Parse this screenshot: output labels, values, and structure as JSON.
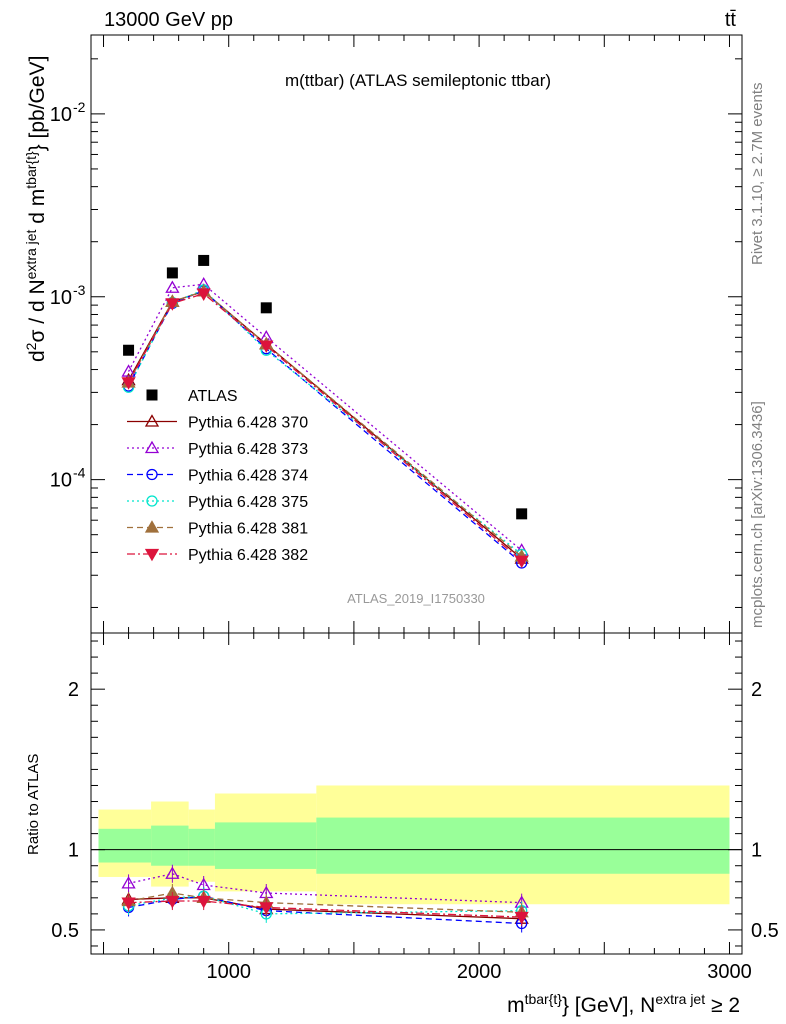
{
  "header": {
    "left": "13000 GeV pp",
    "right": "tt̄"
  },
  "main_title": "m(ttbar) (ATLAS semileptonic ttbar)",
  "side_text": {
    "rivet": "Rivet 3.1.10, ≥ 2.7M events",
    "mcplots": "mcplots.cern.ch [arXiv:1306.3436]"
  },
  "analysis_id": "ATLAS_2019_I1750330",
  "colors": {
    "ATLAS": "#000000",
    "p370": "#8b0000",
    "p373": "#9400d3",
    "p374": "#0000ff",
    "p375": "#00e5cc",
    "p381": "#a0703c",
    "p382": "#dc143c",
    "band_inner": "#99ff99",
    "band_outer": "#ffff99"
  },
  "chart_data": [
    {
      "type": "scatter",
      "name": "upper",
      "title": "m(ttbar) (ATLAS semileptonic ttbar)",
      "ylabel": "d²σ / d N^{extra jet} d m^{tbar{t}} [pb/GeV]",
      "xlabel": "m^{tbar{t}} [GeV], N^{extra jet} ≥ 2",
      "yscale": "log",
      "xlim": [
        450,
        3050
      ],
      "ylim": [
        1.45e-05,
        0.027
      ],
      "y_ticks": [
        {
          "value": 0.0001,
          "label": "10",
          "exp": "-4"
        },
        {
          "value": 0.001,
          "label": "10",
          "exp": "-3"
        },
        {
          "value": 0.01,
          "label": "10",
          "exp": "-2"
        }
      ],
      "x": [
        600,
        775,
        900,
        1150,
        2170
      ],
      "series": [
        {
          "name": "ATLAS",
          "key": "ATLAS",
          "values": [
            0.00051,
            0.00135,
            0.00158,
            0.00087,
            6.5e-05
          ]
        },
        {
          "name": "Pythia 6.428 370",
          "key": "p370",
          "values": [
            0.00035,
            0.00094,
            0.00107,
            0.00055,
            3.7e-05
          ]
        },
        {
          "name": "Pythia 6.428 373",
          "key": "p373",
          "values": [
            0.00039,
            0.00112,
            0.00117,
            0.0006,
            4.1e-05
          ]
        },
        {
          "name": "Pythia 6.428 374",
          "key": "p374",
          "values": [
            0.000325,
            0.00092,
            0.00108,
            0.00052,
            3.5e-05
          ]
        },
        {
          "name": "Pythia 6.428 375",
          "key": "p375",
          "values": [
            0.00032,
            0.00093,
            0.00109,
            0.00051,
            3.9e-05
          ]
        },
        {
          "name": "Pythia 6.428 381",
          "key": "p381",
          "values": [
            0.00034,
            0.00094,
            0.00107,
            0.00055,
            3.8e-05
          ]
        },
        {
          "name": "Pythia 6.428 382",
          "key": "p382",
          "values": [
            0.00034,
            0.00092,
            0.00104,
            0.00054,
            3.6e-05
          ]
        }
      ]
    },
    {
      "type": "scatter",
      "name": "ratio",
      "ylabel": "Ratio to ATLAS",
      "xlim": [
        450,
        3050
      ],
      "ylim": [
        0.35,
        2.35
      ],
      "y_ticks": [
        0.5,
        1,
        2
      ],
      "x_ticks": [
        1000,
        2000,
        3000
      ],
      "x": [
        600,
        775,
        900,
        1150,
        2170
      ],
      "bands": [
        {
          "x0": 480,
          "x1": 690,
          "inner": [
            0.92,
            1.13
          ],
          "outer": [
            0.83,
            1.25
          ]
        },
        {
          "x0": 690,
          "x1": 840,
          "inner": [
            0.9,
            1.15
          ],
          "outer": [
            0.77,
            1.3
          ]
        },
        {
          "x0": 840,
          "x1": 945,
          "inner": [
            0.9,
            1.13
          ],
          "outer": [
            0.8,
            1.25
          ]
        },
        {
          "x0": 945,
          "x1": 1350,
          "inner": [
            0.88,
            1.17
          ],
          "outer": [
            0.74,
            1.35
          ]
        },
        {
          "x0": 1350,
          "x1": 3000,
          "inner": [
            0.85,
            1.2
          ],
          "outer": [
            0.66,
            1.4
          ]
        }
      ],
      "series": [
        {
          "name": "Pythia 6.428 370",
          "key": "p370",
          "values": [
            0.69,
            0.7,
            0.7,
            0.63,
            0.57
          ]
        },
        {
          "name": "Pythia 6.428 373",
          "key": "p373",
          "values": [
            0.79,
            0.85,
            0.78,
            0.73,
            0.67
          ]
        },
        {
          "name": "Pythia 6.428 374",
          "key": "p374",
          "values": [
            0.64,
            0.69,
            0.71,
            0.62,
            0.54
          ]
        },
        {
          "name": "Pythia 6.428 375",
          "key": "p375",
          "values": [
            0.65,
            0.7,
            0.71,
            0.6,
            0.62
          ]
        },
        {
          "name": "Pythia 6.428 381",
          "key": "p381",
          "values": [
            0.68,
            0.73,
            0.7,
            0.67,
            0.61
          ]
        },
        {
          "name": "Pythia 6.428 382",
          "key": "p382",
          "values": [
            0.67,
            0.68,
            0.68,
            0.64,
            0.58
          ]
        }
      ]
    }
  ],
  "legend": [
    {
      "label": "ATLAS",
      "key": "ATLAS",
      "marker": "square",
      "dash": ""
    },
    {
      "label": "Pythia 6.428 370",
      "key": "p370",
      "marker": "triangle-up-open",
      "dash": ""
    },
    {
      "label": "Pythia 6.428 373",
      "key": "p373",
      "marker": "triangle-up-open",
      "dash": "2,3"
    },
    {
      "label": "Pythia 6.428 374",
      "key": "p374",
      "marker": "circle-open",
      "dash": "6,4"
    },
    {
      "label": "Pythia 6.428 375",
      "key": "p375",
      "marker": "circle-open",
      "dash": "2,3"
    },
    {
      "label": "Pythia 6.428 381",
      "key": "p381",
      "marker": "triangle-up-filled",
      "dash": "6,4"
    },
    {
      "label": "Pythia 6.428 382",
      "key": "p382",
      "marker": "triangle-down-filled",
      "dash": "8,3,2,3"
    }
  ]
}
